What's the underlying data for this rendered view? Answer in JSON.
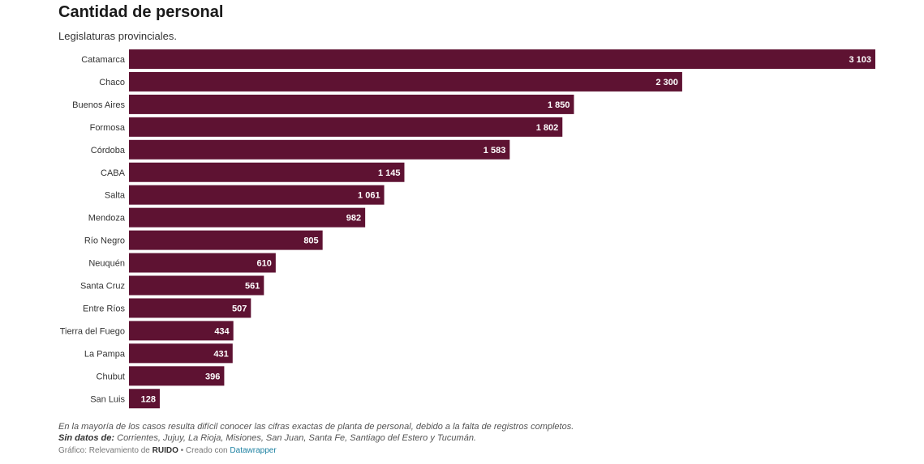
{
  "header": {
    "title": "Cantidad de personal",
    "subtitle": "Legislaturas provinciales."
  },
  "footer": {
    "note": "En la mayoría de los casos resulta difícil conocer las cifras exactas de planta de personal, debido a la falta de registros completos.",
    "missing_label": "Sin datos de:",
    "missing_list": " Corrientes, Jujuy, La Rioja, Misiones, San Juan, Santa Fe, Santiago del Estero y Tucumán.",
    "source_prefix": "Gráfico: Relevamiento de ",
    "source_name": "RUIDO",
    "created_prefix": " • Creado con ",
    "tool_name": "Datawrapper"
  },
  "colors": {
    "bar": "#5e1232",
    "bar_label": "#ffffff",
    "category_label": "#333333"
  },
  "chart_data": {
    "type": "bar",
    "orientation": "horizontal",
    "title": "Cantidad de personal",
    "subtitle": "Legislaturas provinciales.",
    "categories": [
      "Catamarca",
      "Chaco",
      "Buenos Aires",
      "Formosa",
      "Córdoba",
      "CABA",
      "Salta",
      "Mendoza",
      "Río Negro",
      "Neuquén",
      "Santa Cruz",
      "Entre Ríos",
      "Tierra del Fuego",
      "La Pampa",
      "Chubut",
      "San Luis"
    ],
    "values": [
      3103,
      2300,
      1850,
      1802,
      1583,
      1145,
      1061,
      982,
      805,
      610,
      561,
      507,
      434,
      431,
      396,
      128
    ],
    "value_labels": [
      "3 103",
      "2 300",
      "1 850",
      "1 802",
      "1 583",
      "1 145",
      "1 061",
      "982",
      "805",
      "610",
      "561",
      "507",
      "434",
      "431",
      "396",
      "128"
    ],
    "xlim": [
      0,
      3103
    ],
    "grid": false,
    "legend": "none"
  }
}
